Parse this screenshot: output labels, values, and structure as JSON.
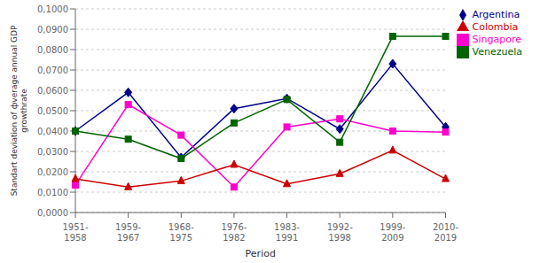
{
  "chart_data": {
    "type": "line",
    "x_label": "Period",
    "y_label": "Standart deviation of фverage annual GDP\ngrowthrate",
    "categories": [
      "1951-\n1958",
      "1959-\n1967",
      "1968-\n1975",
      "1976-\n1982",
      "1983-\n1991",
      "1992-\n1998",
      "1999-\n2009",
      "2010-\n2019"
    ],
    "series": [
      {
        "name": "Argentina",
        "color": "#00008B",
        "marker": "diamond",
        "values": [
          0.04,
          0.059,
          0.027,
          0.051,
          0.056,
          0.041,
          0.073,
          0.042
        ]
      },
      {
        "name": "Singapore",
        "color": "#FF00CC",
        "marker": "square",
        "values": [
          0.0135,
          0.053,
          0.038,
          0.0125,
          0.042,
          0.046,
          0.04,
          0.0395
        ]
      },
      {
        "name": "Colombia",
        "color": "#CC0000",
        "marker": "triangle",
        "values": [
          0.0165,
          0.0125,
          0.0155,
          0.0235,
          0.014,
          0.019,
          0.0305,
          0.0165
        ]
      },
      {
        "name": "Venezuela",
        "color": "#006400",
        "marker": "square",
        "values": [
          0.04,
          0.036,
          0.0265,
          0.044,
          0.0555,
          0.0345,
          0.0865,
          0.0865
        ]
      }
    ],
    "ylim": [
      0.0,
      0.1
    ],
    "yticks": [
      {
        "value": 0.0,
        "label": "0,0000"
      },
      {
        "value": 0.01,
        "label": "0,0100"
      },
      {
        "value": 0.02,
        "label": "0,0200"
      },
      {
        "value": 0.03,
        "label": "0,0300"
      },
      {
        "value": 0.04,
        "label": "0,0400"
      },
      {
        "value": 0.05,
        "label": "0,0500"
      },
      {
        "value": 0.06,
        "label": "0,0600"
      },
      {
        "value": 0.07,
        "label": "0,0700"
      },
      {
        "value": 0.08,
        "label": "0,0800"
      },
      {
        "value": 0.09,
        "label": "0,0900"
      },
      {
        "value": 0.1,
        "label": "0,1000"
      }
    ],
    "grid": true,
    "legend": "right"
  }
}
